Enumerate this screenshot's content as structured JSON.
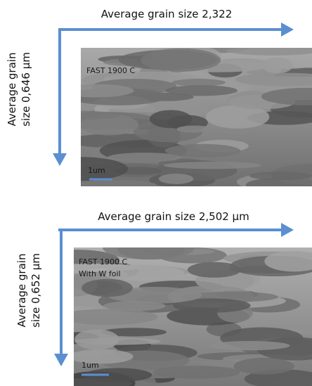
{
  "panels": [
    {
      "horizontal_label": "Average grain size 2,322",
      "vertical_label": [
        "Average grain",
        "size 0,646 µm"
      ],
      "image_label": [
        "FAST 1900 C"
      ],
      "scale_bar": "1um"
    },
    {
      "horizontal_label": "Average grain size 2,502 µm",
      "vertical_label": [
        "Average grain",
        "size 0,652 µm"
      ],
      "image_label": [
        "FAST 1900 C",
        "With W foil"
      ],
      "scale_bar": "1um"
    }
  ]
}
